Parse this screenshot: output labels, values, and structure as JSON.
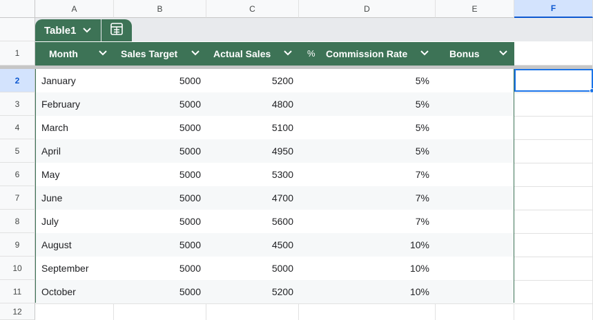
{
  "columns": [
    "A",
    "B",
    "C",
    "D",
    "E",
    "F"
  ],
  "selected_column": "F",
  "row_numbers": [
    "1",
    "2",
    "3",
    "4",
    "5",
    "6",
    "7",
    "8",
    "9",
    "10",
    "11",
    "12"
  ],
  "table": {
    "name": "Table1",
    "headers": {
      "month": "Month",
      "sales_target": "Sales Target",
      "actual_sales": "Actual Sales",
      "percent_symbol": "%",
      "commission_rate": "Commission Rate",
      "bonus": "Bonus"
    },
    "rows": [
      {
        "month": "January",
        "target": "5000",
        "actual": "5200",
        "rate": "5%",
        "bonus": ""
      },
      {
        "month": "February",
        "target": "5000",
        "actual": "4800",
        "rate": "5%",
        "bonus": ""
      },
      {
        "month": "March",
        "target": "5000",
        "actual": "5100",
        "rate": "5%",
        "bonus": ""
      },
      {
        "month": "April",
        "target": "5000",
        "actual": "4950",
        "rate": "5%",
        "bonus": ""
      },
      {
        "month": "May",
        "target": "5000",
        "actual": "5300",
        "rate": "7%",
        "bonus": ""
      },
      {
        "month": "June",
        "target": "5000",
        "actual": "4700",
        "rate": "7%",
        "bonus": ""
      },
      {
        "month": "July",
        "target": "5000",
        "actual": "5600",
        "rate": "7%",
        "bonus": ""
      },
      {
        "month": "August",
        "target": "5000",
        "actual": "4500",
        "rate": "10%",
        "bonus": ""
      },
      {
        "month": "September",
        "target": "5000",
        "actual": "5000",
        "rate": "10%",
        "bonus": ""
      },
      {
        "month": "October",
        "target": "5000",
        "actual": "5200",
        "rate": "10%",
        "bonus": ""
      }
    ]
  },
  "colors": {
    "table_header": "#3d7356",
    "band_row": "#f6f8f9",
    "selection": "#1a73e8"
  },
  "icons": {
    "table_menu": "chevron-down-icon",
    "table_settings": "table-grid-icon",
    "filter": "chevron-down-icon"
  }
}
